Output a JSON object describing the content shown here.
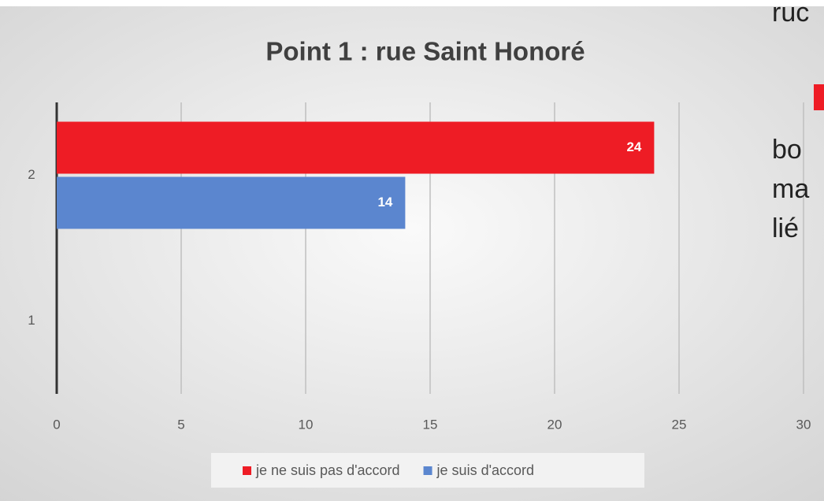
{
  "chart_data": {
    "type": "barh",
    "title": "Point 1 : rue Saint Honoré",
    "categories": [
      "1",
      "2"
    ],
    "series": [
      {
        "name": "je ne suis pas d'accord",
        "color": "#ee1c25",
        "values": [
          null,
          24
        ]
      },
      {
        "name": "je suis d'accord",
        "color": "#5b86cf",
        "values": [
          null,
          14
        ]
      }
    ],
    "xlim": [
      0,
      30
    ],
    "xticks": [
      0,
      5,
      10,
      15,
      20,
      25,
      30
    ],
    "grid": true,
    "legend": "bottom"
  },
  "slide_text": [
    "ruc",
    "bo",
    "ma",
    "lié"
  ]
}
